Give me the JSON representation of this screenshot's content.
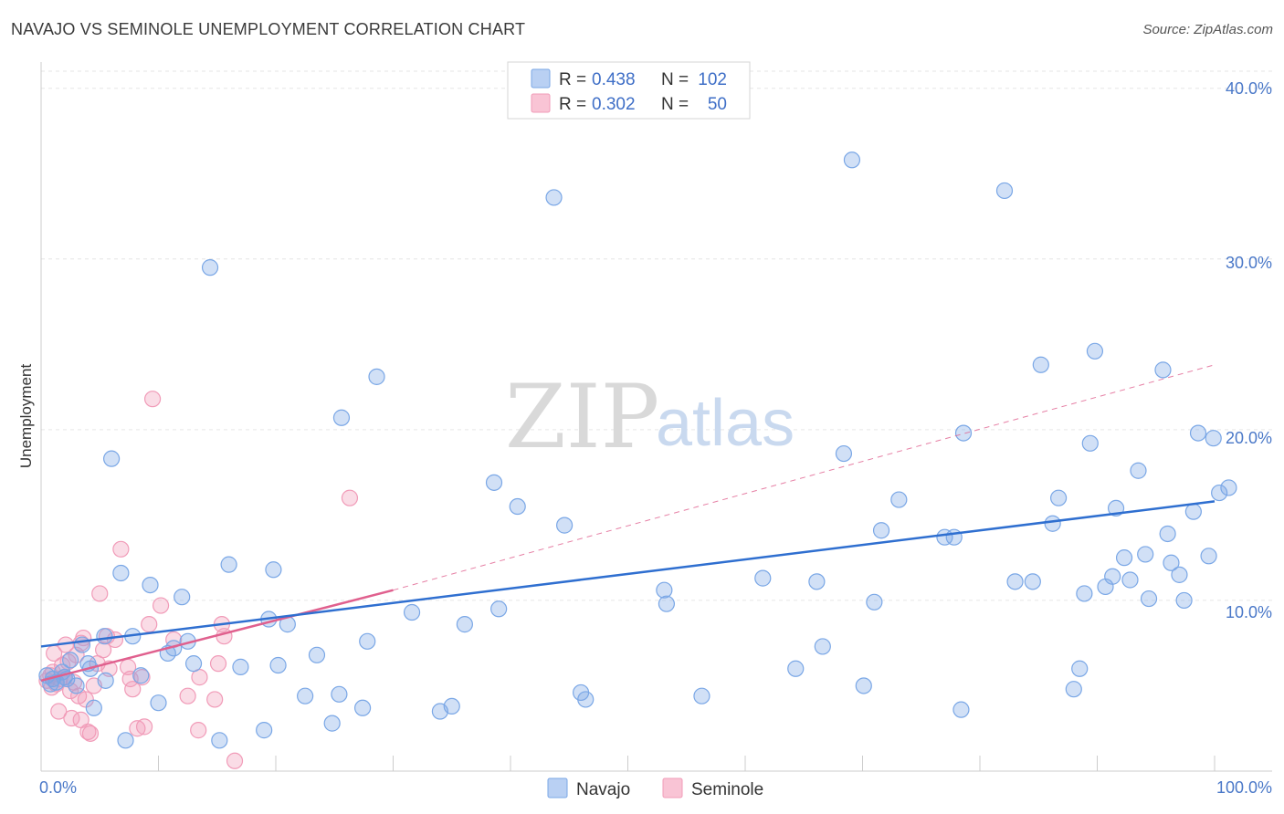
{
  "header": {
    "title": "NAVAJO VS SEMINOLE UNEMPLOYMENT CORRELATION CHART",
    "source": "Source: ZipAtlas.com"
  },
  "watermark": {
    "zip": "ZIP",
    "atlas": "atlas"
  },
  "colors": {
    "navajo": "#7aa7e6",
    "navajo_line": "#2f6fd0",
    "seminole": "#f19bb8",
    "seminole_line": "#e0608e",
    "tick": "#4a78c8"
  },
  "legend": {
    "rows": [
      {
        "r_label": "R =",
        "r_value": "0.438",
        "n_label": "N =",
        "n_value": "102"
      },
      {
        "r_label": "R =",
        "r_value": "0.302",
        "n_label": "N =",
        "n_value": "50"
      }
    ]
  },
  "chart_data": {
    "type": "scatter",
    "title": "NAVAJO VS SEMINOLE UNEMPLOYMENT CORRELATION CHART",
    "xlabel": "",
    "ylabel": "Unemployment",
    "xlim": [
      0,
      100
    ],
    "ylim": [
      0,
      41
    ],
    "x_tick_labels": [
      "0.0%",
      "100.0%"
    ],
    "y_ticks": [
      10,
      20,
      30,
      40
    ],
    "y_tick_labels": [
      "10.0%",
      "20.0%",
      "30.0%",
      "40.0%"
    ],
    "grid": true,
    "legend_position": "top-center",
    "series": [
      {
        "name": "Navajo",
        "color": "#7aa7e6",
        "trend": {
          "x": [
            0,
            100
          ],
          "y": [
            7.3,
            15.8
          ]
        },
        "points": [
          [
            0.5,
            5.6
          ],
          [
            1,
            5.4
          ],
          [
            1.3,
            5.2
          ],
          [
            2,
            5.5
          ],
          [
            2.5,
            6.5
          ],
          [
            3.5,
            7.4
          ],
          [
            4,
            6.3
          ],
          [
            4.5,
            3.7
          ],
          [
            5.5,
            5.3
          ],
          [
            6,
            18.3
          ],
          [
            6.8,
            11.6
          ],
          [
            7.2,
            1.8
          ],
          [
            7.8,
            7.9
          ],
          [
            8.5,
            5.6
          ],
          [
            9.3,
            10.9
          ],
          [
            10,
            4
          ],
          [
            10.8,
            6.9
          ],
          [
            11.3,
            7.2
          ],
          [
            12,
            10.2
          ],
          [
            12.5,
            7.6
          ],
          [
            13,
            6.3
          ],
          [
            14.4,
            29.5
          ],
          [
            15.2,
            1.8
          ],
          [
            16,
            12.1
          ],
          [
            17,
            6.1
          ],
          [
            19,
            2.4
          ],
          [
            19.4,
            8.9
          ],
          [
            19.8,
            11.8
          ],
          [
            20.2,
            6.2
          ],
          [
            21,
            8.6
          ],
          [
            22.5,
            4.4
          ],
          [
            23.5,
            6.8
          ],
          [
            24.8,
            2.8
          ],
          [
            25.4,
            4.5
          ],
          [
            25.6,
            20.7
          ],
          [
            27.4,
            3.7
          ],
          [
            27.8,
            7.6
          ],
          [
            28.6,
            23.1
          ],
          [
            31.6,
            9.3
          ],
          [
            34,
            3.5
          ],
          [
            35,
            3.8
          ],
          [
            36.1,
            8.6
          ],
          [
            38.6,
            16.9
          ],
          [
            39,
            9.5
          ],
          [
            40.6,
            15.5
          ],
          [
            43.7,
            33.6
          ],
          [
            44.6,
            14.4
          ],
          [
            46,
            4.6
          ],
          [
            46.4,
            4.2
          ],
          [
            53.1,
            10.6
          ],
          [
            53.3,
            9.8
          ],
          [
            56.3,
            4.4
          ],
          [
            61.5,
            11.3
          ],
          [
            64.3,
            6
          ],
          [
            66.1,
            11.1
          ],
          [
            66.6,
            7.3
          ],
          [
            68.4,
            18.6
          ],
          [
            69.1,
            35.8
          ],
          [
            70.1,
            5
          ],
          [
            71,
            9.9
          ],
          [
            71.6,
            14.1
          ],
          [
            73.1,
            15.9
          ],
          [
            77,
            13.7
          ],
          [
            77.8,
            13.7
          ],
          [
            78.4,
            3.6
          ],
          [
            78.6,
            19.8
          ],
          [
            82.1,
            34
          ],
          [
            83,
            11.1
          ],
          [
            84.5,
            11.1
          ],
          [
            85.2,
            23.8
          ],
          [
            86.2,
            14.5
          ],
          [
            86.7,
            16
          ],
          [
            88,
            4.8
          ],
          [
            88.5,
            6
          ],
          [
            88.9,
            10.4
          ],
          [
            89.4,
            19.2
          ],
          [
            89.8,
            24.6
          ],
          [
            90.7,
            10.8
          ],
          [
            91.3,
            11.4
          ],
          [
            91.6,
            15.4
          ],
          [
            92.3,
            12.5
          ],
          [
            92.8,
            11.2
          ],
          [
            93.5,
            17.6
          ],
          [
            94.1,
            12.7
          ],
          [
            94.4,
            10.1
          ],
          [
            95.6,
            23.5
          ],
          [
            96,
            13.9
          ],
          [
            96.3,
            12.2
          ],
          [
            97,
            11.5
          ],
          [
            97.4,
            10
          ],
          [
            98.2,
            15.2
          ],
          [
            98.6,
            19.8
          ],
          [
            99.5,
            12.6
          ],
          [
            99.9,
            19.5
          ],
          [
            100.4,
            16.3
          ],
          [
            101.2,
            16.6
          ],
          [
            2.2,
            5.4
          ],
          [
            5.4,
            7.9
          ],
          [
            0.8,
            5.1
          ],
          [
            1.8,
            5.8
          ],
          [
            3,
            5.0
          ],
          [
            4.2,
            6.0
          ]
        ]
      },
      {
        "name": "Seminole",
        "color": "#f19bb8",
        "trend": {
          "x": [
            0,
            30
          ],
          "y": [
            5.3,
            10.6
          ],
          "dashed_extension": {
            "x": [
              30,
              100
            ],
            "y": [
              10.6,
              23.8
            ]
          }
        },
        "points": [
          [
            0.5,
            5.3
          ],
          [
            0.8,
            5.6
          ],
          [
            1,
            5.8
          ],
          [
            1.3,
            5.1
          ],
          [
            1.6,
            5.4
          ],
          [
            1.8,
            6.2
          ],
          [
            2,
            5.5
          ],
          [
            2.3,
            6.4
          ],
          [
            2.5,
            4.7
          ],
          [
            2.8,
            5.2
          ],
          [
            3,
            6.8
          ],
          [
            3.2,
            4.4
          ],
          [
            3.4,
            7.5
          ],
          [
            3.6,
            7.8
          ],
          [
            3.8,
            4.2
          ],
          [
            4,
            2.3
          ],
          [
            4.2,
            2.2
          ],
          [
            4.5,
            5
          ],
          [
            4.8,
            6.3
          ],
          [
            5,
            10.4
          ],
          [
            5.3,
            7.1
          ],
          [
            5.6,
            7.9
          ],
          [
            5.8,
            6
          ],
          [
            6.3,
            7.7
          ],
          [
            6.8,
            13
          ],
          [
            7.4,
            6.1
          ],
          [
            7.6,
            5.4
          ],
          [
            7.8,
            4.8
          ],
          [
            8.2,
            2.5
          ],
          [
            8.6,
            5.5
          ],
          [
            8.8,
            2.6
          ],
          [
            9.2,
            8.6
          ],
          [
            9.5,
            21.8
          ],
          [
            10.2,
            9.7
          ],
          [
            11.3,
            7.7
          ],
          [
            12.5,
            4.4
          ],
          [
            13.4,
            2.4
          ],
          [
            13.5,
            5.5
          ],
          [
            14.8,
            4.2
          ],
          [
            15.1,
            6.3
          ],
          [
            15.4,
            8.6
          ],
          [
            15.6,
            7.9
          ],
          [
            16.5,
            0.6
          ],
          [
            26.3,
            16
          ],
          [
            1.5,
            3.5
          ],
          [
            2.6,
            3.1
          ],
          [
            3.4,
            3
          ],
          [
            1.1,
            6.9
          ],
          [
            2.1,
            7.4
          ],
          [
            0.9,
            4.9
          ]
        ]
      }
    ]
  },
  "bottom_legend": {
    "items": [
      "Navajo",
      "Seminole"
    ]
  }
}
